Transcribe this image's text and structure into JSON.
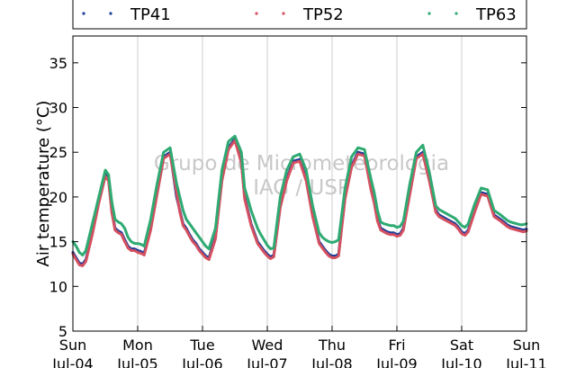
{
  "chart_data": {
    "type": "line",
    "xlabel": "",
    "ylabel": "Air temperature (°C)",
    "ylim": [
      5,
      38
    ],
    "yticks": [
      5,
      10,
      15,
      20,
      25,
      30,
      35
    ],
    "x_range_days": [
      0,
      7
    ],
    "x_ticks": [
      {
        "day": 0,
        "weekday": "Sun",
        "date": "Jul-04"
      },
      {
        "day": 1,
        "weekday": "Mon",
        "date": "Jul-05"
      },
      {
        "day": 2,
        "weekday": "Tue",
        "date": "Jul-06"
      },
      {
        "day": 3,
        "weekday": "Wed",
        "date": "Jul-07"
      },
      {
        "day": 4,
        "weekday": "Thu",
        "date": "Jul-08"
      },
      {
        "day": 5,
        "weekday": "Fri",
        "date": "Jul-09"
      },
      {
        "day": 6,
        "weekday": "Sat",
        "date": "Jul-10"
      },
      {
        "day": 7,
        "weekday": "Sun",
        "date": "Jul-11"
      }
    ],
    "grid": "vertical",
    "legend_position": "top, outside plot",
    "watermark": [
      "Grupo de Micrometeorologia",
      "IAG / USP"
    ],
    "series": [
      {
        "name": "TP41",
        "color": "#1f3d99",
        "x": [
          0.0,
          0.05,
          0.1,
          0.15,
          0.2,
          0.3,
          0.4,
          0.5,
          0.55,
          0.6,
          0.65,
          0.7,
          0.75,
          0.8,
          0.85,
          0.9,
          0.95,
          1.0,
          1.05,
          1.1,
          1.2,
          1.3,
          1.4,
          1.5,
          1.6,
          1.65,
          1.7,
          1.75,
          1.8,
          1.85,
          1.9,
          1.95,
          2.0,
          2.05,
          2.1,
          2.2,
          2.3,
          2.4,
          2.5,
          2.6,
          2.65,
          2.7,
          2.75,
          2.8,
          2.85,
          2.9,
          2.95,
          3.0,
          3.05,
          3.1,
          3.2,
          3.3,
          3.4,
          3.5,
          3.6,
          3.65,
          3.7,
          3.75,
          3.8,
          3.85,
          3.9,
          3.95,
          4.0,
          4.05,
          4.1,
          4.2,
          4.3,
          4.4,
          4.5,
          4.6,
          4.65,
          4.7,
          4.75,
          4.8,
          4.85,
          4.9,
          4.95,
          5.0,
          5.05,
          5.1,
          5.2,
          5.3,
          5.4,
          5.5,
          5.6,
          5.65,
          5.7,
          5.75,
          5.8,
          5.85,
          5.9,
          5.95,
          6.0,
          6.05,
          6.1,
          6.2,
          6.3,
          6.4,
          6.5,
          6.6,
          6.65,
          6.7,
          6.75,
          6.8,
          6.85,
          6.9,
          6.95,
          7.0
        ],
        "values": [
          13.8,
          13.2,
          12.6,
          12.5,
          13.0,
          16.0,
          19.5,
          22.5,
          22.0,
          18.5,
          16.5,
          16.2,
          16.0,
          15.2,
          14.5,
          14.2,
          14.2,
          14.0,
          13.9,
          13.7,
          16.5,
          20.5,
          24.5,
          25.0,
          20.0,
          18.5,
          17.0,
          16.5,
          15.8,
          15.2,
          14.8,
          14.2,
          13.8,
          13.4,
          13.2,
          15.5,
          22.0,
          25.5,
          26.5,
          24.0,
          20.0,
          18.5,
          17.0,
          16.0,
          15.0,
          14.5,
          14.0,
          13.6,
          13.3,
          13.5,
          19.0,
          22.0,
          24.0,
          24.2,
          22.0,
          20.0,
          18.0,
          16.5,
          15.0,
          14.5,
          14.0,
          13.6,
          13.4,
          13.4,
          13.6,
          20.0,
          23.5,
          25.0,
          24.8,
          21.0,
          19.5,
          17.5,
          16.5,
          16.3,
          16.1,
          16.0,
          16.0,
          15.8,
          15.9,
          16.5,
          20.5,
          24.5,
          25.0,
          22.0,
          18.5,
          18.0,
          17.8,
          17.6,
          17.4,
          17.2,
          17.0,
          16.6,
          16.1,
          15.9,
          16.3,
          18.5,
          20.5,
          20.3,
          18.0,
          17.5,
          17.2,
          16.9,
          16.7,
          16.6,
          16.5,
          16.4,
          16.3,
          16.4
        ]
      },
      {
        "name": "TP52",
        "color": "#d45060",
        "x": [
          0.0,
          0.05,
          0.1,
          0.15,
          0.2,
          0.3,
          0.4,
          0.5,
          0.55,
          0.6,
          0.65,
          0.7,
          0.75,
          0.8,
          0.85,
          0.9,
          0.95,
          1.0,
          1.05,
          1.1,
          1.2,
          1.3,
          1.4,
          1.5,
          1.6,
          1.65,
          1.7,
          1.75,
          1.8,
          1.85,
          1.9,
          1.95,
          2.0,
          2.05,
          2.1,
          2.2,
          2.3,
          2.4,
          2.5,
          2.6,
          2.65,
          2.7,
          2.75,
          2.8,
          2.85,
          2.9,
          2.95,
          3.0,
          3.05,
          3.1,
          3.2,
          3.3,
          3.4,
          3.5,
          3.6,
          3.65,
          3.7,
          3.75,
          3.8,
          3.85,
          3.9,
          3.95,
          4.0,
          4.05,
          4.1,
          4.2,
          4.3,
          4.4,
          4.5,
          4.6,
          4.65,
          4.7,
          4.75,
          4.8,
          4.85,
          4.9,
          4.95,
          5.0,
          5.05,
          5.1,
          5.2,
          5.3,
          5.4,
          5.5,
          5.6,
          5.65,
          5.7,
          5.75,
          5.8,
          5.85,
          5.9,
          5.95,
          6.0,
          6.05,
          6.1,
          6.2,
          6.3,
          6.4,
          6.5,
          6.6,
          6.65,
          6.7,
          6.75,
          6.8,
          6.85,
          6.9,
          6.95,
          7.0
        ],
        "values": [
          13.6,
          13.0,
          12.4,
          12.3,
          12.8,
          15.8,
          19.3,
          22.3,
          21.8,
          18.3,
          16.3,
          16.0,
          15.8,
          15.0,
          14.3,
          14.0,
          14.0,
          13.8,
          13.7,
          13.5,
          16.3,
          20.3,
          24.3,
          24.8,
          20.5,
          18.3,
          16.8,
          16.3,
          15.6,
          15.0,
          14.6,
          14.0,
          13.6,
          13.2,
          13.0,
          15.3,
          21.8,
          25.3,
          26.3,
          23.8,
          19.8,
          18.3,
          16.8,
          15.8,
          14.8,
          14.3,
          13.8,
          13.4,
          13.1,
          13.3,
          18.8,
          21.8,
          23.8,
          24.0,
          21.8,
          19.8,
          17.8,
          16.3,
          14.8,
          14.3,
          13.8,
          13.4,
          13.2,
          13.2,
          13.4,
          19.8,
          23.3,
          24.8,
          24.6,
          20.8,
          19.3,
          17.3,
          16.3,
          16.1,
          15.9,
          15.8,
          15.8,
          15.6,
          15.7,
          16.3,
          20.3,
          24.3,
          24.8,
          21.8,
          18.3,
          17.8,
          17.6,
          17.4,
          17.2,
          17.0,
          16.8,
          16.4,
          15.9,
          15.7,
          16.1,
          18.3,
          20.3,
          20.1,
          17.8,
          17.3,
          17.0,
          16.7,
          16.5,
          16.4,
          16.3,
          16.2,
          16.1,
          16.2
        ]
      },
      {
        "name": "TP63",
        "color": "#2eaa72",
        "x": [
          0.0,
          0.05,
          0.1,
          0.15,
          0.2,
          0.3,
          0.4,
          0.5,
          0.55,
          0.6,
          0.65,
          0.7,
          0.75,
          0.8,
          0.85,
          0.9,
          0.95,
          1.0,
          1.05,
          1.1,
          1.2,
          1.3,
          1.4,
          1.5,
          1.6,
          1.65,
          1.7,
          1.75,
          1.8,
          1.85,
          1.9,
          1.95,
          2.0,
          2.05,
          2.1,
          2.2,
          2.3,
          2.4,
          2.5,
          2.6,
          2.65,
          2.7,
          2.75,
          2.8,
          2.85,
          2.9,
          2.95,
          3.0,
          3.05,
          3.1,
          3.2,
          3.3,
          3.4,
          3.5,
          3.6,
          3.65,
          3.7,
          3.75,
          3.8,
          3.85,
          3.9,
          3.95,
          4.0,
          4.05,
          4.1,
          4.2,
          4.3,
          4.4,
          4.5,
          4.6,
          4.65,
          4.7,
          4.75,
          4.8,
          4.85,
          4.9,
          4.95,
          5.0,
          5.05,
          5.1,
          5.2,
          5.3,
          5.4,
          5.5,
          5.6,
          5.65,
          5.7,
          5.75,
          5.8,
          5.85,
          5.9,
          5.95,
          6.0,
          6.05,
          6.1,
          6.2,
          6.3,
          6.4,
          6.5,
          6.6,
          6.65,
          6.7,
          6.75,
          6.8,
          6.85,
          6.9,
          6.95,
          7.0
        ],
        "values": [
          15.0,
          14.5,
          13.8,
          13.5,
          14.0,
          17.0,
          20.0,
          23.0,
          22.5,
          19.5,
          17.5,
          17.2,
          17.0,
          16.5,
          15.5,
          15.0,
          14.8,
          14.8,
          14.7,
          14.5,
          17.5,
          21.5,
          25.0,
          25.5,
          21.5,
          20.0,
          18.5,
          17.5,
          17.0,
          16.5,
          16.0,
          15.5,
          15.0,
          14.5,
          14.2,
          16.5,
          23.0,
          26.2,
          26.8,
          25.0,
          21.0,
          19.8,
          18.5,
          17.5,
          16.5,
          15.8,
          15.2,
          14.6,
          14.2,
          14.3,
          20.0,
          23.0,
          24.5,
          24.8,
          23.0,
          21.0,
          19.0,
          17.5,
          16.0,
          15.5,
          15.2,
          15.0,
          14.9,
          15.0,
          15.2,
          21.0,
          24.5,
          25.5,
          25.3,
          22.0,
          20.5,
          18.5,
          17.2,
          17.0,
          16.9,
          16.8,
          16.8,
          16.6,
          16.7,
          17.3,
          21.5,
          25.0,
          25.8,
          22.8,
          19.0,
          18.6,
          18.4,
          18.2,
          18.0,
          17.8,
          17.6,
          17.2,
          16.8,
          16.6,
          17.0,
          19.2,
          21.0,
          20.8,
          18.5,
          18.0,
          17.7,
          17.4,
          17.2,
          17.1,
          17.0,
          16.9,
          16.9,
          17.0
        ]
      }
    ]
  }
}
